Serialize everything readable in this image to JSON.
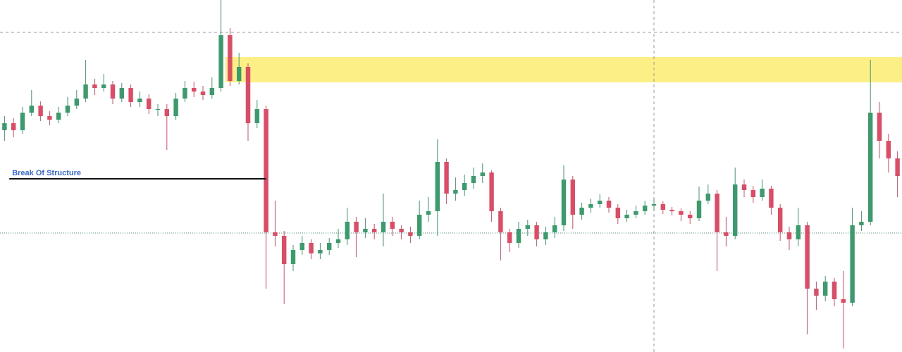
{
  "chart_data": {
    "type": "candlestick",
    "ylim": [
      0,
      500
    ],
    "up_color": "#3a9b6c",
    "down_color": "#df4a64",
    "open": [
      315,
      325,
      315,
      340,
      350,
      335,
      330,
      340,
      350,
      360,
      380,
      375,
      380,
      360,
      375,
      355,
      360,
      345,
      345,
      335,
      360,
      375,
      370,
      365,
      375,
      450,
      385,
      405,
      325,
      345,
      170,
      165,
      125,
      145,
      155,
      140,
      145,
      155,
      160,
      185,
      170,
      175,
      170,
      185,
      175,
      170,
      165,
      195,
      200,
      270,
      225,
      230,
      240,
      250,
      255,
      200,
      170,
      155,
      175,
      180,
      160,
      170,
      180,
      245,
      195,
      205,
      210,
      215,
      205,
      190,
      195,
      200,
      208,
      210,
      202,
      200,
      195,
      190,
      215,
      225,
      170,
      165,
      238,
      230,
      220,
      232,
      205,
      170,
      160,
      180,
      90,
      80,
      100,
      75,
      70,
      180,
      185,
      340,
      300,
      275
    ],
    "high": [
      335,
      332,
      348,
      372,
      356,
      342,
      348,
      362,
      372,
      415,
      388,
      395,
      385,
      382,
      380,
      370,
      366,
      352,
      352,
      368,
      385,
      384,
      378,
      390,
      500,
      460,
      425,
      410,
      358,
      350,
      215,
      172,
      152,
      165,
      160,
      155,
      162,
      175,
      205,
      192,
      190,
      182,
      225,
      192,
      180,
      178,
      215,
      220,
      302,
      275,
      248,
      252,
      262,
      268,
      258,
      205,
      175,
      185,
      188,
      185,
      178,
      192,
      265,
      250,
      212,
      218,
      224,
      220,
      210,
      202,
      208,
      215,
      218,
      214,
      206,
      204,
      200,
      235,
      238,
      230,
      192,
      262,
      245,
      236,
      245,
      236,
      210,
      178,
      205,
      185,
      100,
      108,
      105,
      115,
      205,
      200,
      415,
      355,
      310,
      285
    ],
    "low": [
      300,
      305,
      310,
      335,
      328,
      322,
      325,
      335,
      345,
      355,
      365,
      370,
      352,
      355,
      348,
      348,
      338,
      335,
      287,
      330,
      355,
      362,
      358,
      360,
      370,
      378,
      380,
      300,
      318,
      90,
      150,
      68,
      115,
      138,
      132,
      132,
      138,
      148,
      152,
      135,
      162,
      160,
      150,
      165,
      160,
      155,
      160,
      185,
      165,
      210,
      215,
      222,
      232,
      240,
      185,
      130,
      142,
      148,
      165,
      150,
      152,
      162,
      172,
      175,
      188,
      198,
      205,
      198,
      182,
      185,
      190,
      195,
      200,
      196,
      194,
      186,
      182,
      186,
      210,
      115,
      150,
      160,
      220,
      212,
      215,
      195,
      158,
      145,
      150,
      25,
      60,
      72,
      65,
      5,
      65,
      172,
      180,
      275,
      255,
      220
    ],
    "close": [
      325,
      315,
      340,
      350,
      335,
      330,
      340,
      350,
      360,
      380,
      375,
      380,
      360,
      375,
      355,
      360,
      345,
      345,
      335,
      360,
      375,
      370,
      365,
      375,
      450,
      385,
      405,
      325,
      345,
      170,
      165,
      125,
      145,
      155,
      140,
      145,
      155,
      160,
      185,
      170,
      175,
      170,
      185,
      175,
      170,
      165,
      195,
      200,
      270,
      225,
      230,
      240,
      250,
      255,
      200,
      170,
      155,
      175,
      180,
      160,
      170,
      180,
      245,
      195,
      205,
      210,
      215,
      205,
      190,
      195,
      200,
      208,
      210,
      202,
      200,
      195,
      190,
      215,
      225,
      170,
      165,
      238,
      230,
      220,
      232,
      205,
      170,
      160,
      180,
      90,
      80,
      100,
      75,
      70,
      180,
      185,
      340,
      300,
      275,
      250
    ],
    "supply_zone": {
      "low": 383,
      "high": 419,
      "start_index": 25,
      "color": "#fbef86"
    },
    "resistance_level": 454,
    "current_level": 169,
    "crosshair_index": 72,
    "break_of_structure": {
      "label": "Break Of Structure",
      "level": 246,
      "start_index": 1,
      "end_index": 29
    }
  }
}
